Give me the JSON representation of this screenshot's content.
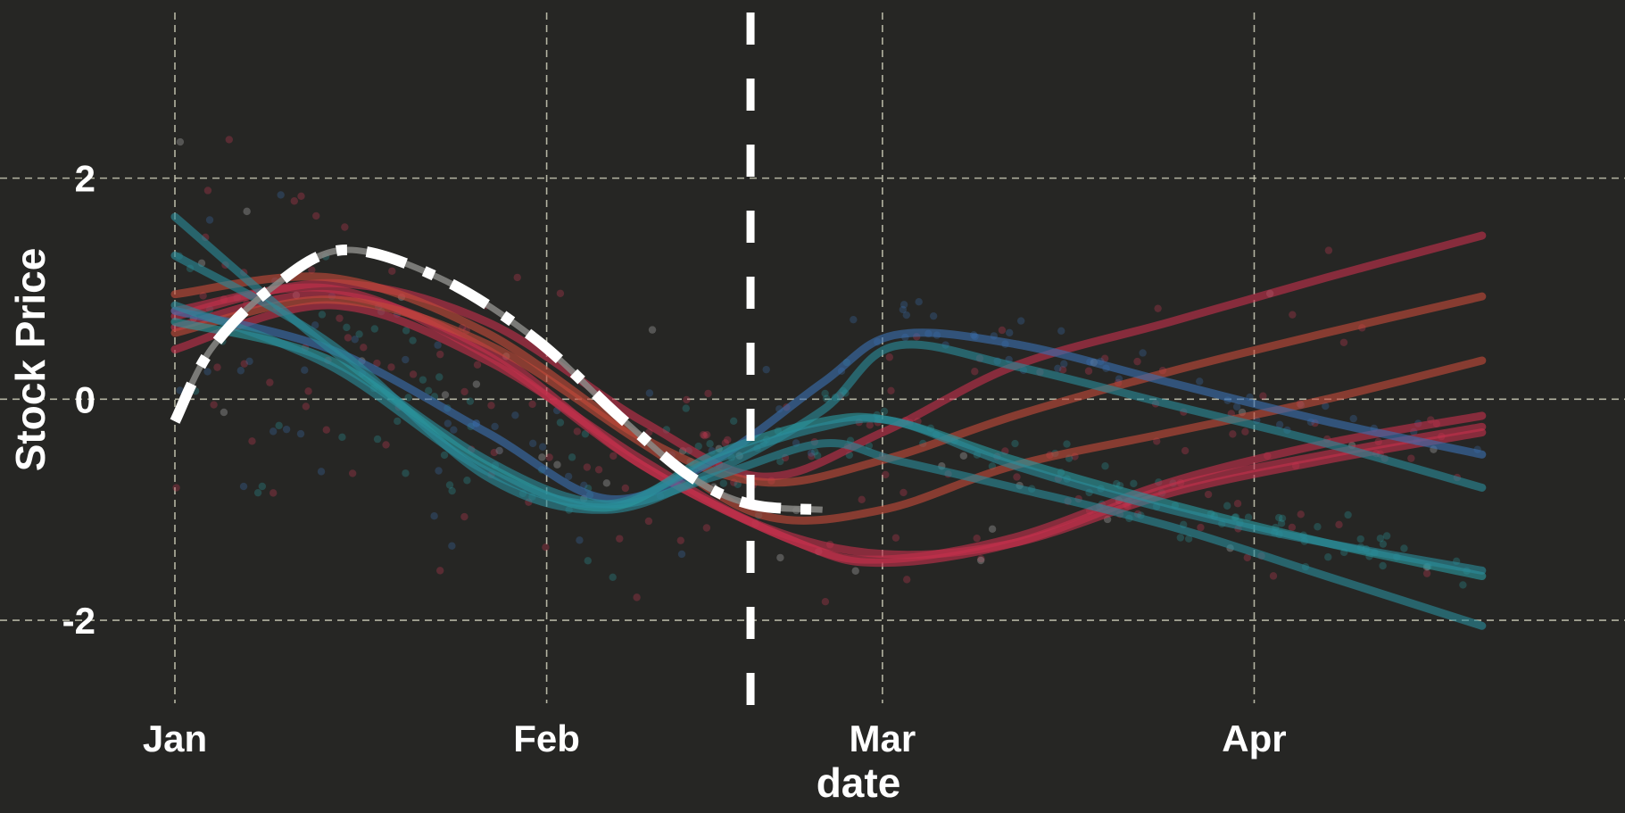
{
  "chart_data": {
    "type": "line",
    "title": "",
    "xlabel": "date",
    "ylabel": "Stock Price",
    "x_ticks": [
      {
        "label": "Jan",
        "date": "2023-01-01"
      },
      {
        "label": "Feb",
        "date": "2023-02-01"
      },
      {
        "label": "Mar",
        "date": "2023-03-01"
      },
      {
        "label": "Apr",
        "date": "2023-04-01"
      }
    ],
    "y_ticks": [
      2,
      0,
      -2
    ],
    "xlim": [
      "2023-01-01",
      "2023-04-25"
    ],
    "ylim": [
      -2.75,
      3.45
    ],
    "grid": true,
    "vline_date": "2023-02-18",
    "background": "#262624",
    "grid_color": "#cdcdb8",
    "series": [
      {
        "color": "#c4304c",
        "values": [
          [
            0,
            0.8
          ],
          [
            13,
            1.0
          ],
          [
            26,
            0.4
          ],
          [
            39,
            -0.6
          ],
          [
            52,
            -1.3
          ],
          [
            59,
            -1.45
          ],
          [
            70,
            -1.25
          ],
          [
            83,
            -0.75
          ],
          [
            96,
            -0.4
          ],
          [
            109,
            -0.15
          ]
        ]
      },
      {
        "color": "#c4304c",
        "values": [
          [
            0,
            0.65
          ],
          [
            13,
            0.95
          ],
          [
            26,
            0.45
          ],
          [
            39,
            -0.6
          ],
          [
            52,
            -1.3
          ],
          [
            59,
            -1.48
          ],
          [
            70,
            -1.3
          ],
          [
            83,
            -0.8
          ],
          [
            96,
            -0.5
          ],
          [
            109,
            -0.25
          ]
        ]
      },
      {
        "color": "#c4304c",
        "values": [
          [
            0,
            0.45
          ],
          [
            13,
            0.85
          ],
          [
            26,
            0.35
          ],
          [
            39,
            -0.55
          ],
          [
            49,
            -1.15
          ],
          [
            59,
            -1.4
          ],
          [
            70,
            -1.3
          ],
          [
            83,
            -0.85
          ],
          [
            96,
            -0.55
          ],
          [
            109,
            -0.3
          ]
        ]
      },
      {
        "color": "#c4304c",
        "values": [
          [
            0,
            0.75
          ],
          [
            13,
            1.05
          ],
          [
            26,
            0.7
          ],
          [
            39,
            -0.2
          ],
          [
            49,
            -0.7
          ],
          [
            59,
            -0.3
          ],
          [
            70,
            0.3
          ],
          [
            83,
            0.7
          ],
          [
            96,
            1.1
          ],
          [
            109,
            1.48
          ]
        ]
      },
      {
        "color": "#c44a3a",
        "values": [
          [
            0,
            0.95
          ],
          [
            13,
            1.1
          ],
          [
            26,
            0.6
          ],
          [
            39,
            -0.35
          ],
          [
            49,
            -0.75
          ],
          [
            59,
            -0.55
          ],
          [
            70,
            -0.15
          ],
          [
            83,
            0.25
          ],
          [
            96,
            0.6
          ],
          [
            109,
            0.93
          ]
        ]
      },
      {
        "color": "#c44a3a",
        "values": [
          [
            0,
            0.6
          ],
          [
            13,
            0.9
          ],
          [
            26,
            0.5
          ],
          [
            39,
            -0.4
          ],
          [
            49,
            -1.05
          ],
          [
            59,
            -1.0
          ],
          [
            70,
            -0.6
          ],
          [
            83,
            -0.3
          ],
          [
            96,
            0.0
          ],
          [
            109,
            0.35
          ]
        ]
      },
      {
        "color": "#3a6fb0",
        "values": [
          [
            0,
            0.8
          ],
          [
            13,
            0.45
          ],
          [
            26,
            -0.3
          ],
          [
            36,
            -0.9
          ],
          [
            45,
            -0.55
          ],
          [
            54,
            0.15
          ],
          [
            60,
            0.58
          ],
          [
            70,
            0.5
          ],
          [
            83,
            0.15
          ],
          [
            96,
            -0.2
          ],
          [
            109,
            -0.5
          ]
        ]
      },
      {
        "color": "#2a8a9a",
        "values": [
          [
            0,
            1.3
          ],
          [
            13,
            0.5
          ],
          [
            26,
            -0.7
          ],
          [
            36,
            -1.0
          ],
          [
            45,
            -0.65
          ],
          [
            54,
            -0.1
          ],
          [
            60,
            0.48
          ],
          [
            70,
            0.3
          ],
          [
            83,
            -0.05
          ],
          [
            96,
            -0.4
          ],
          [
            109,
            -0.8
          ]
        ]
      },
      {
        "color": "#2a8a9a",
        "values": [
          [
            0,
            1.65
          ],
          [
            13,
            0.45
          ],
          [
            26,
            -0.55
          ],
          [
            36,
            -0.95
          ],
          [
            45,
            -0.7
          ],
          [
            54,
            -0.4
          ],
          [
            60,
            -0.55
          ],
          [
            70,
            -0.8
          ],
          [
            83,
            -1.15
          ],
          [
            96,
            -1.6
          ],
          [
            109,
            -2.05
          ]
        ]
      },
      {
        "color": "#2a9aa0",
        "values": [
          [
            0,
            0.7
          ],
          [
            13,
            0.35
          ],
          [
            26,
            -0.6
          ],
          [
            36,
            -0.98
          ],
          [
            45,
            -0.5
          ],
          [
            54,
            -0.2
          ],
          [
            60,
            -0.2
          ],
          [
            70,
            -0.55
          ],
          [
            83,
            -0.95
          ],
          [
            96,
            -1.3
          ],
          [
            109,
            -1.6
          ]
        ]
      },
      {
        "color": "#2a8a9a",
        "values": [
          [
            0,
            0.85
          ],
          [
            13,
            0.3
          ],
          [
            26,
            -0.65
          ],
          [
            36,
            -0.95
          ],
          [
            45,
            -0.55
          ],
          [
            54,
            -0.25
          ],
          [
            60,
            -0.2
          ],
          [
            70,
            -0.6
          ],
          [
            83,
            -1.0
          ],
          [
            96,
            -1.3
          ],
          [
            109,
            -1.55
          ]
        ]
      }
    ],
    "trend_series": {
      "color": "#ffffff",
      "values": [
        [
          0,
          -0.2
        ],
        [
          3,
          0.45
        ],
        [
          8,
          1.0
        ],
        [
          14,
          1.35
        ],
        [
          22,
          1.1
        ],
        [
          30,
          0.55
        ],
        [
          37,
          -0.15
        ],
        [
          43,
          -0.7
        ],
        [
          48,
          -0.95
        ],
        [
          54,
          -1.0
        ]
      ]
    },
    "point_clouds": [
      {
        "color": "#d03a55",
        "count": 170
      },
      {
        "color": "#2a9aa0",
        "count": 150
      },
      {
        "color": "#3a6fb0",
        "count": 90
      },
      {
        "color": "#b0b0b0",
        "count": 40
      }
    ]
  }
}
